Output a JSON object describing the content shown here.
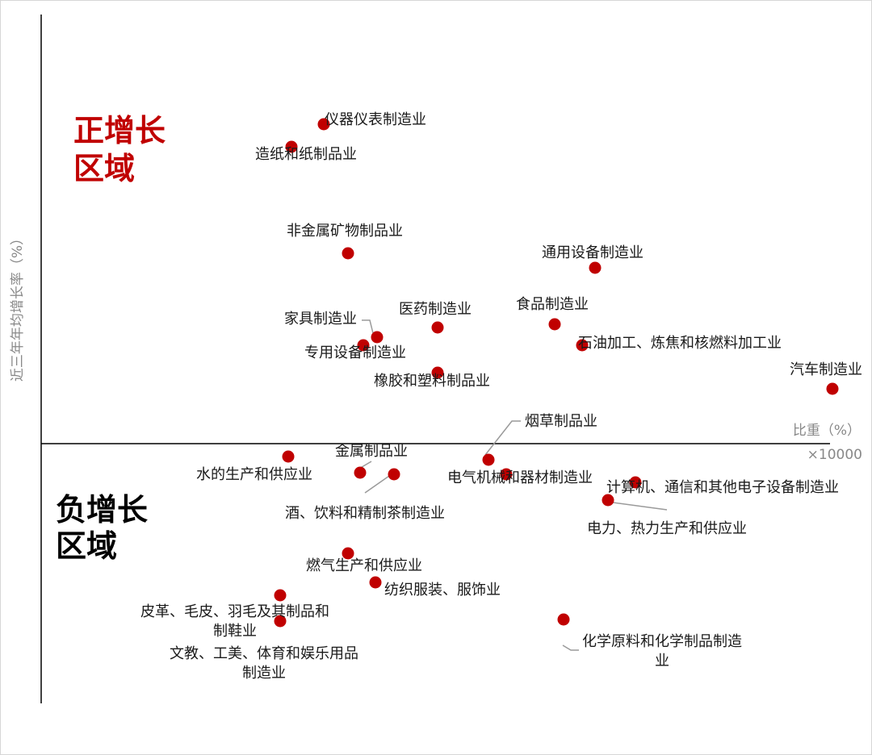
{
  "chart_data": {
    "type": "scatter",
    "xlabel": "比重（%）",
    "x_scale_note": "×10000",
    "ylabel": "近三年年均增长率（%）",
    "region_positive": [
      "正增长",
      "区域"
    ],
    "region_negative": [
      "负增长",
      "区域"
    ],
    "colors": {
      "point": "#c00000",
      "positive_region": "#c00000",
      "negative_region": "#000000",
      "axis": "#000000",
      "leader": "#9a9a9a"
    },
    "points": [
      {
        "name": "仪器仪表制造业",
        "x": 350,
        "y": 99
      },
      {
        "name": "造纸和纸制品业",
        "x": 310,
        "y": 92
      },
      {
        "name": "非金属矿物制品业",
        "x": 380,
        "y": 59
      },
      {
        "name": "通用设备制造业",
        "x": 686,
        "y": 54.5
      },
      {
        "name": "家具制造业",
        "x": 416,
        "y": 33
      },
      {
        "name": "专用设备制造业",
        "x": 399,
        "y": 30.5
      },
      {
        "name": "医药制造业",
        "x": 491,
        "y": 36
      },
      {
        "name": "食品制造业",
        "x": 636,
        "y": 37
      },
      {
        "name": "石油加工、炼焦和核燃料加工业",
        "x": 670,
        "y": 30.5
      },
      {
        "name": "橡胶和塑料制品业",
        "x": 491,
        "y": 22
      },
      {
        "name": "汽车制造业",
        "x": 980,
        "y": 17
      },
      {
        "name": "烟草制品业",
        "x": 554,
        "y": -5
      },
      {
        "name": "水的生产和供应业",
        "x": 306,
        "y": -4
      },
      {
        "name": "金属制品业",
        "x": 395,
        "y": -9
      },
      {
        "name": "酒、饮料和精制茶制造业",
        "x": 437,
        "y": -9.5
      },
      {
        "name": "电气机械和器材制造业",
        "x": 576,
        "y": -9.5
      },
      {
        "name": "计算机、通信和其他电子设备制造业",
        "x": 736,
        "y": -12
      },
      {
        "name": "电力、热力生产和供应业",
        "x": 702,
        "y": -17.5
      },
      {
        "name": "燃气生产和供应业",
        "x": 380,
        "y": -34
      },
      {
        "name": "纺织服装、服饰业",
        "x": 414,
        "y": -43
      },
      {
        "name": "皮革、毛皮、羽毛及其制品和制鞋业",
        "x": 296,
        "y": -47
      },
      {
        "name": "文教、工美、体育和娱乐用品制造业",
        "x": 296,
        "y": -55
      },
      {
        "name": "化学原料和化学制品制造业",
        "x": 647,
        "y": -54.5
      }
    ]
  }
}
